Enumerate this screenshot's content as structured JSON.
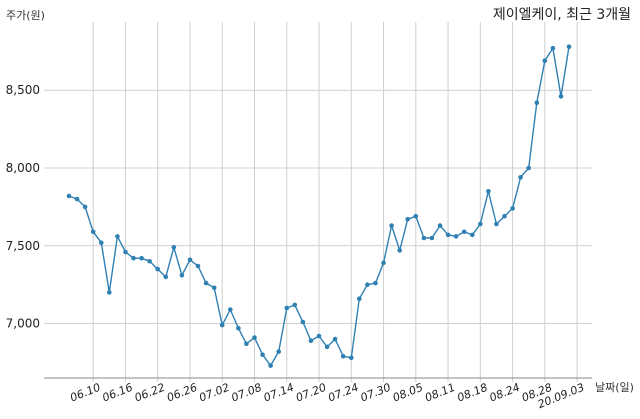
{
  "chart_data": {
    "type": "line",
    "title": "제이엘케이, 최근 3개월",
    "ylabel": "주가(원)",
    "xlabel": "날짜(일)",
    "ylim": [
      6650,
      8900
    ],
    "grid": true,
    "line_color": "#2f80b3",
    "yticks": [
      {
        "value": 7000,
        "label": "7,000"
      },
      {
        "value": 7500,
        "label": "7,500"
      },
      {
        "value": 8000,
        "label": "8,000"
      },
      {
        "value": 8500,
        "label": "8,500"
      }
    ],
    "xticks": [
      {
        "index": 3,
        "label": "06.10"
      },
      {
        "index": 7,
        "label": "06.16"
      },
      {
        "index": 11,
        "label": "06.22"
      },
      {
        "index": 15,
        "label": "06.26"
      },
      {
        "index": 19,
        "label": "07.02"
      },
      {
        "index": 23,
        "label": "07.08"
      },
      {
        "index": 27,
        "label": "07.14"
      },
      {
        "index": 31,
        "label": "07.20"
      },
      {
        "index": 35,
        "label": "07.24"
      },
      {
        "index": 39,
        "label": "07.30"
      },
      {
        "index": 43,
        "label": "08.05"
      },
      {
        "index": 47,
        "label": "08.11"
      },
      {
        "index": 51,
        "label": "08.18"
      },
      {
        "index": 55,
        "label": "08.24"
      },
      {
        "index": 59,
        "label": "08.28"
      },
      {
        "index": 63,
        "label": "20.09.03"
      }
    ],
    "values": [
      7820,
      7800,
      7750,
      7590,
      7520,
      7200,
      7560,
      7460,
      7420,
      7420,
      7400,
      7350,
      7300,
      7490,
      7310,
      7410,
      7370,
      7260,
      7230,
      6990,
      7090,
      6970,
      6870,
      6910,
      6800,
      6730,
      6820,
      7100,
      7120,
      7010,
      6890,
      6920,
      6850,
      6900,
      6790,
      6780,
      7160,
      7250,
      7260,
      7390,
      7630,
      7470,
      7670,
      7690,
      7550,
      7550,
      7630,
      7570,
      7560,
      7590,
      7570,
      7640,
      7850,
      7640,
      7690,
      7740,
      7940,
      8000,
      8420,
      8690,
      8770,
      8460,
      8780
    ]
  }
}
